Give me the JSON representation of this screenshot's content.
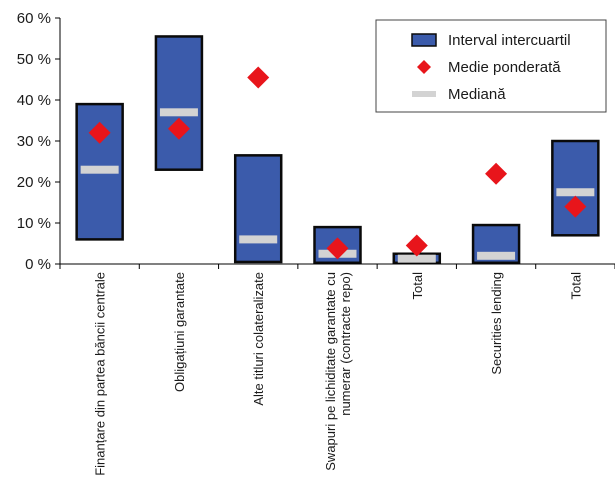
{
  "chart_data": {
    "type": "box",
    "categories": [
      [
        "Finanțare din partea băncii centrale"
      ],
      [
        "Obligațiuni garantate"
      ],
      [
        "Alte titluri colateralizate"
      ],
      [
        "Swapuri pe lichiditate garantate cu",
        "numerar (contracte repo)"
      ],
      [
        "Total"
      ],
      [
        "Securities lending"
      ],
      [
        "Total"
      ]
    ],
    "series": [
      {
        "name": "Interval intercuartil",
        "low": [
          6,
          23,
          0.5,
          0.3,
          0.3,
          0.3,
          7
        ],
        "high": [
          39,
          55.5,
          26.5,
          9,
          2.5,
          9.5,
          30
        ]
      },
      {
        "name": "Medie ponderată",
        "values": [
          32,
          33,
          45.5,
          3.8,
          4.5,
          22,
          14
        ]
      },
      {
        "name": "Mediană",
        "values": [
          23,
          37,
          6,
          2.5,
          1.3,
          2,
          17.5
        ]
      }
    ],
    "yticks": [
      "0 %",
      "10 %",
      "20 %",
      "30 %",
      "40 %",
      "50 %",
      "60 %"
    ],
    "ylim": [
      0,
      60
    ],
    "grid": false,
    "legend": "top-right",
    "colors": {
      "box": "#3b5bab",
      "box_edge": "#0a0a0a",
      "mean": "#e8151b",
      "median": "#d3d3d3"
    }
  }
}
